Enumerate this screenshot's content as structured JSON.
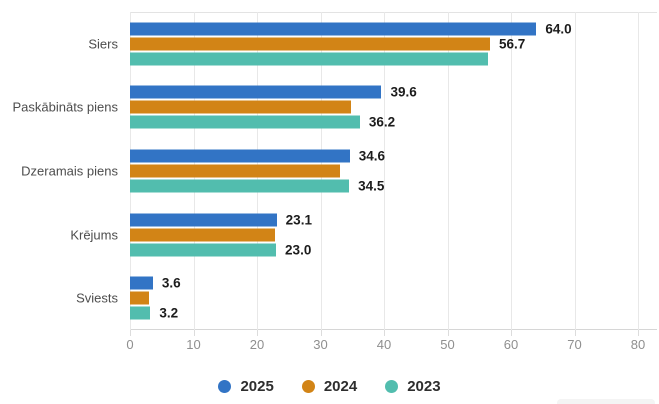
{
  "chart_data": {
    "type": "bar",
    "orientation": "horizontal",
    "title": "",
    "categories": [
      "Siers",
      "Paskābināts piens",
      "Dzeramais piens",
      "Krējums",
      "Sviests"
    ],
    "series": [
      {
        "name": "2025",
        "color": "#3274c5",
        "values": [
          64.0,
          39.6,
          34.6,
          23.1,
          3.6
        ],
        "data_labels": [
          "64.0",
          "39.6",
          "34.6",
          "23.1",
          "3.6"
        ]
      },
      {
        "name": "2024",
        "color": "#d28416",
        "values": [
          56.7,
          34.8,
          33.0,
          22.9,
          3.0
        ],
        "data_labels": [
          "56.7",
          null,
          null,
          null,
          null
        ]
      },
      {
        "name": "2023",
        "color": "#52bdae",
        "values": [
          56.3,
          36.2,
          34.5,
          23.0,
          3.2
        ],
        "data_labels": [
          null,
          "36.2",
          "34.5",
          "23.0",
          "3.2"
        ]
      }
    ],
    "xlim": [
      0,
      80
    ],
    "x_ticks": [
      "0",
      "10",
      "20",
      "30",
      "40",
      "50",
      "60",
      "70",
      "80"
    ],
    "grid": "vertical-only",
    "legend_position": "bottom",
    "legend": [
      "2025",
      "2024",
      "2023"
    ]
  },
  "colors": {
    "background": "#ffffff",
    "gridline": "#e8e8e8",
    "axis_line": "#d6d6d6",
    "tick_label": "#8f8f8f",
    "category_label": "#4d4d4d",
    "value_label": "#1c1c1c",
    "legend_text": "#2e2e2e"
  }
}
